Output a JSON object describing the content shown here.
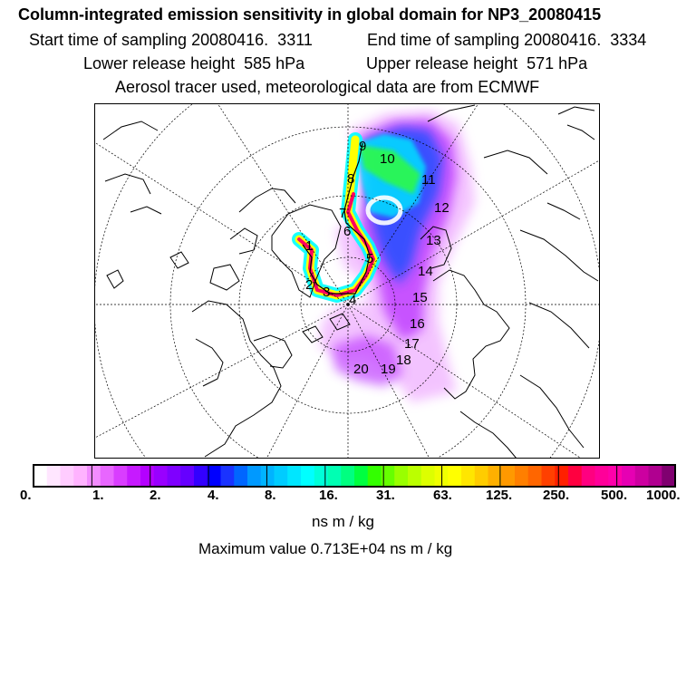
{
  "header": {
    "title": "Column-integrated emission sensitivity in global domain for NP3_20080415",
    "start_label": "Start time of sampling",
    "start_value": "20080416.  3311",
    "end_label": "End time of sampling",
    "end_value": "20080416.  3334",
    "lower_label": "Lower release height",
    "lower_value": "585 hPa",
    "upper_label": "Upper release height",
    "upper_value": "571 hPa",
    "tracer_line": "Aerosol tracer used, meteorological data are from ECMWF"
  },
  "map": {
    "projection": "polar-stereographic",
    "trajectory_labels": [
      "1",
      "2",
      "3",
      "4",
      "5",
      "6",
      "7",
      "8",
      "9",
      "10",
      "11",
      "12",
      "13",
      "14",
      "15",
      "16",
      "17",
      "18",
      "19",
      "20"
    ],
    "colors": {
      "coastline": "#000000",
      "graticule": "#000000",
      "trajectory": "#000000"
    }
  },
  "colorbar": {
    "ticks": [
      "0.",
      "1.",
      "2.",
      "4.",
      "8.",
      "16.",
      "31.",
      "63.",
      "125.",
      "250.",
      "500.",
      "1000."
    ],
    "colors": [
      "#ffffff",
      "#ffe6ff",
      "#ffccff",
      "#ffb3ff",
      "#f28cff",
      "#e866ff",
      "#d93dff",
      "#c61aff",
      "#b400ff",
      "#9900ff",
      "#7f00ff",
      "#6600ff",
      "#3300ff",
      "#0000ff",
      "#1a33ff",
      "#0066ff",
      "#0099ff",
      "#00b3ff",
      "#00ccff",
      "#00e6ff",
      "#00ffff",
      "#00ffd9",
      "#00ffb3",
      "#00ff80",
      "#00ff40",
      "#33ff00",
      "#66ff00",
      "#99ff00",
      "#bbff00",
      "#ddff00",
      "#f0ff00",
      "#ffff00",
      "#ffe600",
      "#ffcc00",
      "#ffb000",
      "#ff9900",
      "#ff7f00",
      "#ff6600",
      "#ff4000",
      "#ff2000",
      "#ff0040",
      "#ff0080",
      "#ff0099",
      "#ff00aa",
      "#e600b3",
      "#cc00a0",
      "#b00090",
      "#800070"
    ],
    "units": "ns m / kg",
    "max_label": "Maximum value",
    "max_value": "0.713E+04 ns m / kg"
  }
}
